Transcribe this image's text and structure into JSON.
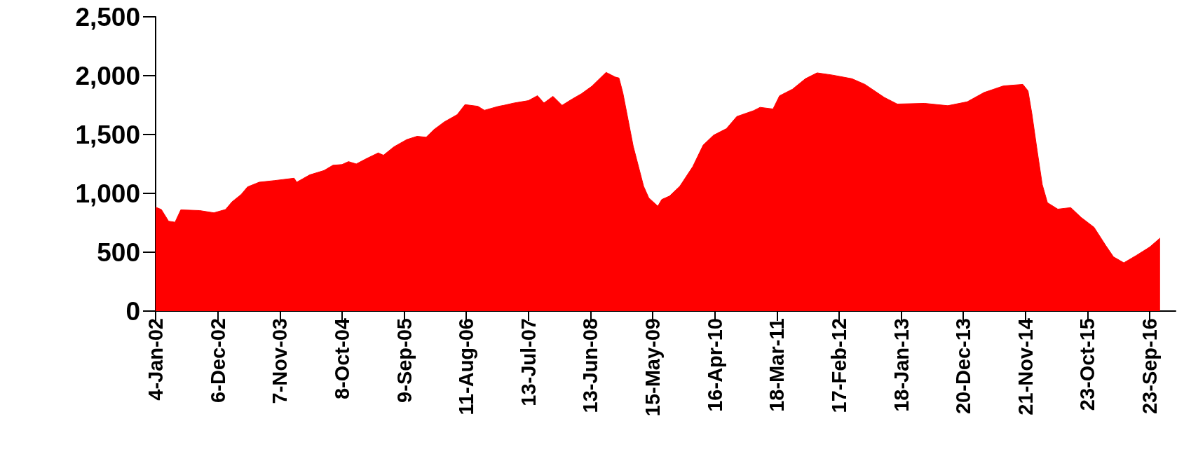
{
  "chart_data": {
    "type": "area",
    "x": [
      "2002-01-04",
      "2002-02-04",
      "2002-03-15",
      "2002-04-19",
      "2002-05-20",
      "2002-08-30",
      "2002-11-15",
      "2003-01-17",
      "2003-02-21",
      "2003-04-11",
      "2003-05-16",
      "2003-07-18",
      "2003-10-10",
      "2004-01-23",
      "2004-02-06",
      "2004-04-16",
      "2004-07-02",
      "2004-08-20",
      "2004-10-08",
      "2004-11-12",
      "2004-12-24",
      "2005-02-18",
      "2005-04-22",
      "2005-05-20",
      "2005-07-15",
      "2005-09-23",
      "2005-11-18",
      "2006-01-06",
      "2006-02-17",
      "2006-04-14",
      "2006-06-23",
      "2006-08-04",
      "2006-10-13",
      "2006-11-17",
      "2007-02-02",
      "2007-03-02",
      "2007-04-27",
      "2007-07-13",
      "2007-08-31",
      "2007-10-05",
      "2007-11-23",
      "2008-01-11",
      "2008-02-29",
      "2008-04-25",
      "2008-06-20",
      "2008-09-05",
      "2008-10-24",
      "2008-11-14",
      "2008-12-05",
      "2009-01-02",
      "2009-01-30",
      "2009-02-27",
      "2009-03-27",
      "2009-04-24",
      "2009-06-12",
      "2009-07-03",
      "2009-08-14",
      "2009-10-09",
      "2009-12-18",
      "2010-02-12",
      "2010-04-09",
      "2010-06-18",
      "2010-08-13",
      "2010-11-12",
      "2010-12-17",
      "2011-02-25",
      "2011-04-01",
      "2011-06-10",
      "2011-08-19",
      "2011-10-21",
      "2012-01-13",
      "2012-04-27",
      "2012-07-06",
      "2012-10-19",
      "2012-12-28",
      "2013-05-24",
      "2013-09-27",
      "2014-01-10",
      "2014-04-11",
      "2014-07-25",
      "2014-11-07",
      "2014-12-05",
      "2014-12-26",
      "2015-01-23",
      "2015-02-20",
      "2015-03-20",
      "2015-05-15",
      "2015-07-24",
      "2015-09-18",
      "2015-11-27",
      "2016-01-29",
      "2016-03-11",
      "2016-05-06",
      "2016-07-15",
      "2016-09-23",
      "2016-11-18"
    ],
    "series": [
      {
        "color": "#ff0000",
        "values": [
          883,
          863,
          764,
          755,
          860,
          854,
          835,
          863,
          928,
          990,
          1055,
          1095,
          1109,
          1129,
          1095,
          1157,
          1194,
          1239,
          1245,
          1270,
          1250,
          1296,
          1344,
          1324,
          1395,
          1457,
          1485,
          1477,
          1542,
          1607,
          1669,
          1754,
          1740,
          1706,
          1740,
          1748,
          1768,
          1788,
          1830,
          1768,
          1825,
          1748,
          1796,
          1847,
          1910,
          2028,
          1989,
          1980,
          1853,
          1627,
          1400,
          1231,
          1061,
          962,
          891,
          948,
          977,
          1061,
          1228,
          1410,
          1494,
          1550,
          1653,
          1703,
          1731,
          1717,
          1829,
          1885,
          1974,
          2024,
          2005,
          1974,
          1926,
          1815,
          1759,
          1765,
          1745,
          1778,
          1857,
          1913,
          1926,
          1871,
          1675,
          1368,
          1075,
          921,
          866,
          879,
          796,
          712,
          558,
          461,
          410,
          475,
          544,
          620
        ]
      }
    ],
    "xlim": [
      "2002-01-04",
      "2017-02-10"
    ],
    "xticks": [
      {
        "value": "2002-01-04",
        "label": "4-Jan-02"
      },
      {
        "value": "2002-12-06",
        "label": "6-Dec-02"
      },
      {
        "value": "2003-11-07",
        "label": "7-Nov-03"
      },
      {
        "value": "2004-10-08",
        "label": "8-Oct-04"
      },
      {
        "value": "2005-09-09",
        "label": "9-Sep-05"
      },
      {
        "value": "2006-08-11",
        "label": "11-Aug-06"
      },
      {
        "value": "2007-07-13",
        "label": "13-Jul-07"
      },
      {
        "value": "2008-06-13",
        "label": "13-Jun-08"
      },
      {
        "value": "2009-05-15",
        "label": "15-May-09"
      },
      {
        "value": "2010-04-16",
        "label": "16-Apr-10"
      },
      {
        "value": "2011-03-18",
        "label": "18-Mar-11"
      },
      {
        "value": "2012-02-17",
        "label": "17-Feb-12"
      },
      {
        "value": "2013-01-18",
        "label": "18-Jan-13"
      },
      {
        "value": "2013-12-20",
        "label": "20-Dec-13"
      },
      {
        "value": "2014-11-21",
        "label": "21-Nov-14"
      },
      {
        "value": "2015-10-23",
        "label": "23-Oct-15"
      },
      {
        "value": "2016-09-23",
        "label": "23-Sep-16"
      }
    ],
    "ylim": [
      0,
      2500
    ],
    "yticks": [
      0,
      500,
      {
        "value": 1000,
        "label": "1,000"
      },
      {
        "value": 1500,
        "label": "1,500"
      },
      {
        "value": 2000,
        "label": "2,000"
      },
      {
        "value": 2500,
        "label": "2,500"
      }
    ],
    "grid": false,
    "marker": "none"
  }
}
